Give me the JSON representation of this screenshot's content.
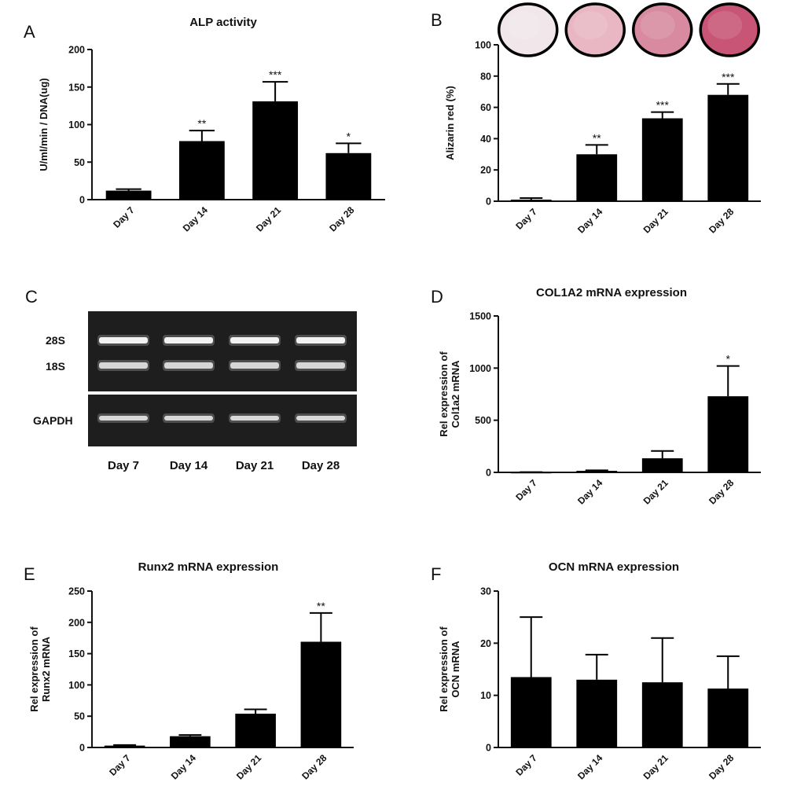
{
  "chart_data": [
    {
      "panel": "A",
      "type": "bar",
      "title": "ALP activity",
      "ylabel": "U/ml/min / DNA(ug)",
      "categories": [
        "Day 7",
        "Day 14",
        "Day 21",
        "Day 28"
      ],
      "values": [
        12,
        78,
        131,
        62
      ],
      "errors": [
        2,
        14,
        26,
        13
      ],
      "significance": [
        "",
        "**",
        "***",
        "*"
      ],
      "ylim": [
        0,
        200
      ],
      "yticks": [
        "0",
        "50",
        "100",
        "150",
        "200"
      ]
    },
    {
      "panel": "B",
      "type": "bar",
      "title": "",
      "ylabel": "Alizarin red (%)",
      "categories": [
        "Day 7",
        "Day 14",
        "Day 21",
        "Day 28"
      ],
      "values": [
        1,
        30,
        53,
        68
      ],
      "errors": [
        1,
        6,
        4,
        7
      ],
      "significance": [
        "",
        "**",
        "***",
        "***"
      ],
      "ylim": [
        0,
        100
      ],
      "yticks": [
        "0",
        "20",
        "40",
        "60",
        "80",
        "100"
      ],
      "stain_wells": [
        "#f1e6ea",
        "#e8b7c3",
        "#d88aa0",
        "#c85575"
      ]
    },
    {
      "panel": "D",
      "type": "bar",
      "title": "COL1A2 mRNA expression",
      "ylabel": "Rel expression of Col1a2 mRNA",
      "categories": [
        "Day 7",
        "Day 14",
        "Day 21",
        "Day 28"
      ],
      "values": [
        2,
        15,
        135,
        730
      ],
      "errors": [
        1,
        5,
        70,
        290
      ],
      "significance": [
        "",
        "",
        "",
        "*"
      ],
      "ylim": [
        0,
        1500
      ],
      "yticks": [
        "0",
        "500",
        "1000",
        "1500"
      ]
    },
    {
      "panel": "E",
      "type": "bar",
      "title": "Runx2 mRNA expression",
      "ylabel": "Rel expression of Runx2 mRNA",
      "categories": [
        "Day 7",
        "Day 14",
        "Day 21",
        "Day 28"
      ],
      "values": [
        3,
        18,
        54,
        169
      ],
      "errors": [
        1,
        2,
        7,
        46
      ],
      "significance": [
        "",
        "",
        "",
        "**"
      ],
      "ylim": [
        0,
        250
      ],
      "yticks": [
        "0",
        "50",
        "100",
        "150",
        "200",
        "250"
      ]
    },
    {
      "panel": "F",
      "type": "bar",
      "title": "OCN mRNA expression",
      "ylabel": "Rel expression of OCN mRNA",
      "categories": [
        "Day 7",
        "Day 14",
        "Day 21",
        "Day 28"
      ],
      "values": [
        13.5,
        13,
        12.5,
        11.3
      ],
      "errors": [
        11.5,
        4.8,
        8.5,
        6.2
      ],
      "significance": [
        "",
        "",
        "",
        ""
      ],
      "ylim": [
        0,
        30
      ],
      "yticks": [
        "0",
        "10",
        "20",
        "30"
      ]
    }
  ],
  "gel": {
    "panel": "C",
    "band_labels": [
      "28S",
      "18S",
      "GAPDH"
    ],
    "lanes": [
      "Day 7",
      "Day 14",
      "Day 21",
      "Day 28"
    ]
  }
}
